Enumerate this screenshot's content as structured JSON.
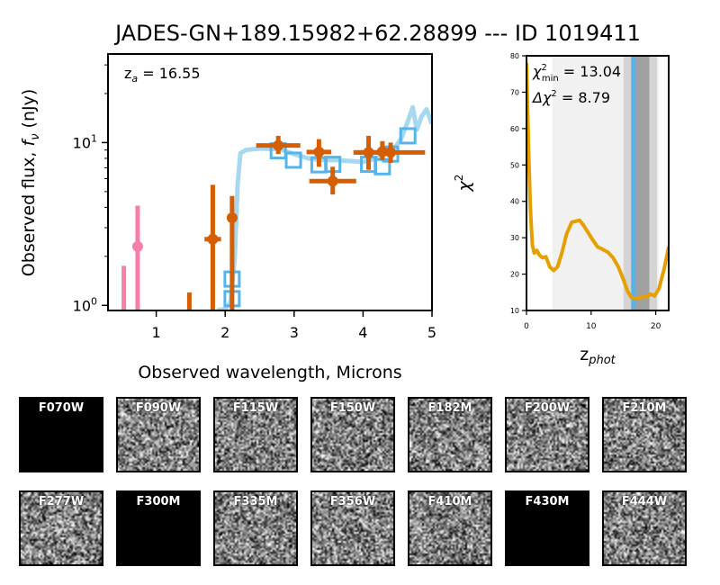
{
  "title": "JADES-GN+189.15982+62.28899 --- ID 1019411",
  "chart_data": [
    {
      "type": "scatter",
      "name": "sed",
      "xlabel": "Observed wavelength, Microns",
      "ylabel_main": "Observed flux, ",
      "ylabel_f": "f",
      "ylabel_sub": "ν",
      "ylabel_unit": " (nJy)",
      "yscale": "log",
      "xlim": [
        0.3,
        5.0
      ],
      "ylim": [
        0.93,
        35
      ],
      "xticks": [
        1,
        2,
        3,
        4,
        5
      ],
      "ytick_base": "10",
      "yticks": [
        {
          "value": 1,
          "exp": "0"
        },
        {
          "value": 10,
          "exp": "1"
        }
      ],
      "annotation_prefix": "z",
      "annotation_sub": "a",
      "annotation_value": " = 16.55",
      "colors": {
        "model_line": "#a6d8f0",
        "model_phot": "#56b4e9",
        "obs": "#d55e00",
        "pink": "#f47fa8"
      },
      "model_spectrum": [
        [
          1.88,
          0.93
        ],
        [
          2.0,
          0.95
        ],
        [
          2.08,
          1.05
        ],
        [
          2.14,
          2.0
        ],
        [
          2.18,
          5.5
        ],
        [
          2.22,
          8.6
        ],
        [
          2.3,
          9.0
        ],
        [
          2.5,
          9.2
        ],
        [
          2.8,
          9.1
        ],
        [
          3.0,
          8.5
        ],
        [
          3.2,
          8.0
        ],
        [
          3.4,
          7.8
        ],
        [
          3.6,
          7.8
        ],
        [
          3.8,
          7.7
        ],
        [
          4.0,
          7.6
        ],
        [
          4.2,
          8.0
        ],
        [
          4.35,
          8.6
        ],
        [
          4.45,
          9.2
        ],
        [
          4.55,
          10.5
        ],
        [
          4.65,
          13.5
        ],
        [
          4.72,
          16.5
        ],
        [
          4.78,
          12.0
        ],
        [
          4.85,
          14.5
        ],
        [
          4.92,
          16.0
        ],
        [
          5.0,
          13.0
        ]
      ],
      "model_photometry": [
        [
          2.1,
          1.1
        ],
        [
          2.1,
          1.45
        ],
        [
          2.77,
          8.9
        ],
        [
          2.99,
          7.8
        ],
        [
          3.36,
          7.3
        ],
        [
          3.56,
          7.35
        ],
        [
          4.08,
          7.35
        ],
        [
          4.28,
          7.1
        ],
        [
          4.4,
          8.5
        ],
        [
          4.65,
          11.0
        ]
      ],
      "observed_points": [
        {
          "x": 1.82,
          "y": 2.55,
          "lo": 0.9,
          "hi": 5.5,
          "xerr": 0.12
        },
        {
          "x": 2.1,
          "y": 3.45,
          "lo": 0.9,
          "hi": 4.7,
          "xerr": 0.06
        },
        {
          "x": 2.77,
          "y": 9.6,
          "lo": 8.5,
          "hi": 11.0,
          "xerr": 0.32
        },
        {
          "x": 3.36,
          "y": 8.75,
          "lo": 7.1,
          "hi": 10.5,
          "xerr": 0.18
        },
        {
          "x": 3.56,
          "y": 5.8,
          "lo": 4.8,
          "hi": 7.1,
          "xerr": 0.34
        },
        {
          "x": 4.08,
          "y": 8.7,
          "lo": 6.8,
          "hi": 11.0,
          "xerr": 0.22
        },
        {
          "x": 4.28,
          "y": 8.8,
          "lo": 7.8,
          "hi": 10.2,
          "xerr": 0.05
        },
        {
          "x": 4.4,
          "y": 8.7,
          "lo": 7.5,
          "hi": 10.0,
          "xerr": 0.5
        }
      ],
      "pink_point": {
        "x": 0.73,
        "y": 2.3,
        "lo": 0.93,
        "hi": 4.1,
        "xerr": 0.05
      },
      "pink_limit": {
        "x": 0.53,
        "hi": 1.75
      },
      "upper_limit_bars": [
        {
          "x": 1.48,
          "hi": 1.2
        }
      ]
    },
    {
      "type": "line",
      "name": "chi2",
      "xlabel_main": "z",
      "xlabel_sub": "phot",
      "ylabel": "χ",
      "ylabel_sup": "2",
      "xlim": [
        0,
        22
      ],
      "ylim": [
        10,
        80
      ],
      "xticks": [
        0,
        10,
        20
      ],
      "yticks": [
        10,
        20,
        30,
        40,
        50,
        60,
        70,
        80
      ],
      "chi2_min_label": "χ",
      "chi2_min_sup": "2",
      "chi2_min_sub": "min",
      "chi2_min_value": " = 13.04",
      "delta_chi2_label": "Δχ",
      "delta_chi2_sup": "2",
      "delta_chi2_value": " = 8.79",
      "colors": {
        "curve": "#e69f00",
        "zline": "#56b4e9",
        "band_light": "#f1f1f1",
        "band_mid": "#d4d4d4",
        "band_dark": "#a0a0a0"
      },
      "band_light": [
        4.0,
        20.5
      ],
      "band_mid": [
        15.0,
        20.2
      ],
      "band_dark": [
        16.2,
        19.0
      ],
      "zbest": 16.55,
      "curve": [
        [
          0.0,
          78
        ],
        [
          0.3,
          55
        ],
        [
          0.6,
          38
        ],
        [
          0.9,
          28
        ],
        [
          1.2,
          25.8
        ],
        [
          1.6,
          26.5
        ],
        [
          2.0,
          25.2
        ],
        [
          2.5,
          24.5
        ],
        [
          3.0,
          24.8
        ],
        [
          3.6,
          22
        ],
        [
          4.2,
          21
        ],
        [
          4.8,
          22
        ],
        [
          5.5,
          26
        ],
        [
          6.2,
          31
        ],
        [
          7.0,
          34.3
        ],
        [
          7.6,
          34.5
        ],
        [
          8.2,
          34.8
        ],
        [
          8.8,
          33.5
        ],
        [
          9.5,
          31.5
        ],
        [
          10.2,
          29.5
        ],
        [
          11.0,
          27.5
        ],
        [
          11.8,
          26.8
        ],
        [
          12.6,
          26.0
        ],
        [
          13.4,
          24.5
        ],
        [
          14.2,
          22.0
        ],
        [
          15.0,
          18.5
        ],
        [
          15.6,
          15.5
        ],
        [
          16.2,
          13.6
        ],
        [
          17.0,
          13.2
        ],
        [
          17.8,
          13.7
        ],
        [
          18.5,
          13.6
        ],
        [
          19.2,
          14.5
        ],
        [
          19.8,
          14.0
        ],
        [
          20.5,
          16.0
        ],
        [
          21.3,
          21.5
        ],
        [
          22.0,
          27.5
        ]
      ]
    }
  ],
  "stamps": [
    {
      "label": "F070W",
      "blank": true
    },
    {
      "label": "F090W",
      "blank": false
    },
    {
      "label": "F115W",
      "blank": false
    },
    {
      "label": "F150W",
      "blank": false
    },
    {
      "label": "F182M",
      "blank": false
    },
    {
      "label": "F200W",
      "blank": false
    },
    {
      "label": "F210M",
      "blank": false
    },
    {
      "label": "F277W",
      "blank": false
    },
    {
      "label": "F300M",
      "blank": true
    },
    {
      "label": "F335M",
      "blank": false
    },
    {
      "label": "F356W",
      "blank": false
    },
    {
      "label": "F410M",
      "blank": false
    },
    {
      "label": "F430M",
      "blank": true
    },
    {
      "label": "F444W",
      "blank": false
    }
  ]
}
